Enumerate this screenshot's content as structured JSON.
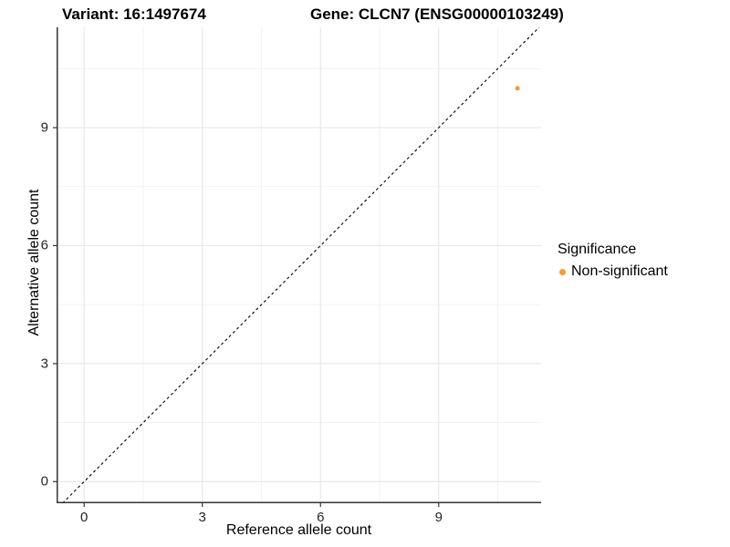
{
  "chart_data": {
    "type": "scatter",
    "title_left": "Variant: 16:1497674",
    "title_right": "Gene: CLCN7 (ENSG00000103249)",
    "xlabel": "Reference allele count",
    "ylabel": "Alternative allele count",
    "xlim": [
      -0.7,
      11.6
    ],
    "ylim": [
      -0.55,
      11.55
    ],
    "xticks": [
      0,
      3,
      6,
      9
    ],
    "yticks": [
      0,
      3,
      6,
      9
    ],
    "minor_ticks": [
      1.5,
      4.5,
      7.5,
      10.5
    ],
    "grid": "major+minor",
    "points": [
      {
        "x": 11,
        "y": 10,
        "series": "Non-significant"
      }
    ],
    "identity_line": {
      "slope": 1,
      "intercept": 0,
      "style": "dashed"
    },
    "legend": {
      "title": "Significance",
      "position": "right",
      "items": [
        {
          "label": "Non-significant",
          "color": "#F99B2D"
        }
      ]
    }
  },
  "colors": {
    "background": "#FFFFFF",
    "grid_major": "#E4E4E4",
    "grid_minor": "#F2F2F2",
    "axis_line": "#333333",
    "identity_line": "#000000",
    "tick_text": "#262626",
    "point": "#F99B2D"
  }
}
